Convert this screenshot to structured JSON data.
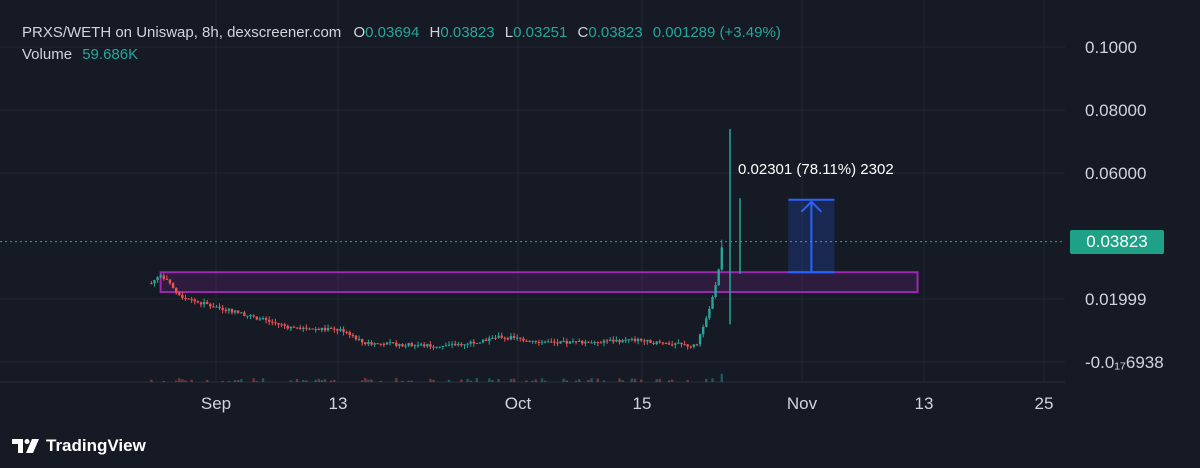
{
  "header": {
    "pair": "PRXS/WETH on Uniswap, 8h, dexscreener.com",
    "o_key": "O",
    "o_val": "0.03694",
    "h_key": "H",
    "h_val": "0.03823",
    "l_key": "L",
    "l_val": "0.03251",
    "c_key": "C",
    "c_val": "0.03823",
    "change": "0.001289 (+3.49%)",
    "volume_key": "Volume",
    "volume_val": "59.686K"
  },
  "price_tag": "0.03823",
  "measure_label": "0.02301 (78.11%) 2302",
  "branding": {
    "name": "TradingView",
    "logo_icon": "tradingview-logo-icon"
  },
  "colors": {
    "up": "#26a69a",
    "down": "#ef5350",
    "zone": "#9c27b0",
    "measure": "#2962ff",
    "background": "#161a25"
  },
  "chart_data": {
    "type": "candlestick",
    "y_tick_labels": [
      "0.1000",
      "0.08000",
      "0.06000",
      "0.01999",
      "-0.0₁₇6938"
    ],
    "y_tick_values": [
      0.1,
      0.08,
      0.06,
      0.01999,
      0
    ],
    "x_tick_labels": [
      "Sep",
      "13",
      "Oct",
      "15",
      "Nov",
      "13",
      "25"
    ],
    "ylim": [
      -0.006,
      0.108
    ],
    "last_price": 0.03823,
    "grid": true,
    "series_close": [
      {
        "date": "2024-08-24",
        "value": 0.025
      },
      {
        "date": "2024-08-25",
        "value": 0.028
      },
      {
        "date": "2024-08-27",
        "value": 0.021
      },
      {
        "date": "2024-08-29",
        "value": 0.019
      },
      {
        "date": "2024-09-02",
        "value": 0.016
      },
      {
        "date": "2024-09-08",
        "value": 0.011
      },
      {
        "date": "2024-09-14",
        "value": 0.01
      },
      {
        "date": "2024-09-16",
        "value": 0.006
      },
      {
        "date": "2024-09-25",
        "value": 0.005
      },
      {
        "date": "2024-10-01",
        "value": 0.008
      },
      {
        "date": "2024-10-07",
        "value": 0.006
      },
      {
        "date": "2024-10-15",
        "value": 0.007
      },
      {
        "date": "2024-10-22",
        "value": 0.005
      },
      {
        "date": "2024-10-24",
        "value": 0.022
      },
      {
        "date": "2024-10-25",
        "value": 0.03823
      }
    ],
    "volume_note": "Volume 59.686K",
    "zone": {
      "from": "2024-08-25",
      "to": "2024-11-15",
      "low": 0.0222,
      "high": 0.0285
    },
    "measure": {
      "from": "2024-11-01",
      "to": "2024-11-06",
      "low": 0.0285,
      "high": 0.0515,
      "label": "0.02301 (78.11%) 2302"
    }
  }
}
